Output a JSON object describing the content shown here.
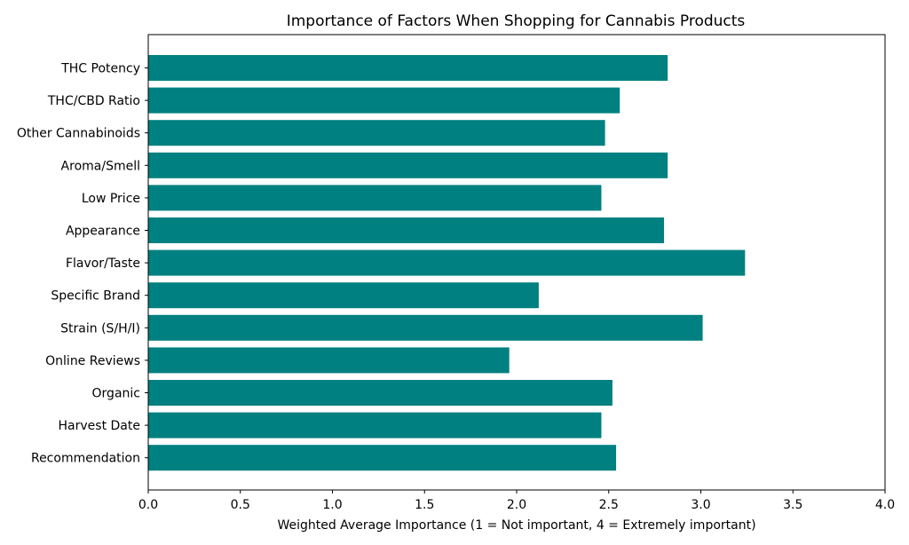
{
  "chart_data": {
    "type": "bar",
    "orientation": "horizontal",
    "title": "Importance of Factors When Shopping for Cannabis Products",
    "xlabel": "Weighted Average Importance (1 = Not important, 4 = Extremely important)",
    "ylabel": "",
    "xlim": [
      0,
      4
    ],
    "xticks": [
      0,
      0.5,
      1,
      1.5,
      2,
      2.5,
      3,
      3.5,
      4
    ],
    "xtick_labels": [
      "0.0",
      "0.5",
      "1.0",
      "1.5",
      "2.0",
      "2.5",
      "3.0",
      "3.5",
      "4.0"
    ],
    "categories": [
      "THC Potency",
      "THC/CBD Ratio",
      "Other Cannabinoids",
      "Aroma/Smell",
      "Low Price",
      "Appearance",
      "Flavor/Taste",
      "Specific Brand",
      "Strain (S/H/I)",
      "Online Reviews",
      "Organic",
      "Harvest Date",
      "Recommendation"
    ],
    "values": [
      2.82,
      2.56,
      2.48,
      2.82,
      2.46,
      2.8,
      3.24,
      2.12,
      3.01,
      1.96,
      2.52,
      2.46,
      2.54
    ],
    "bar_color": "#008080",
    "grid": false,
    "legend": false
  }
}
